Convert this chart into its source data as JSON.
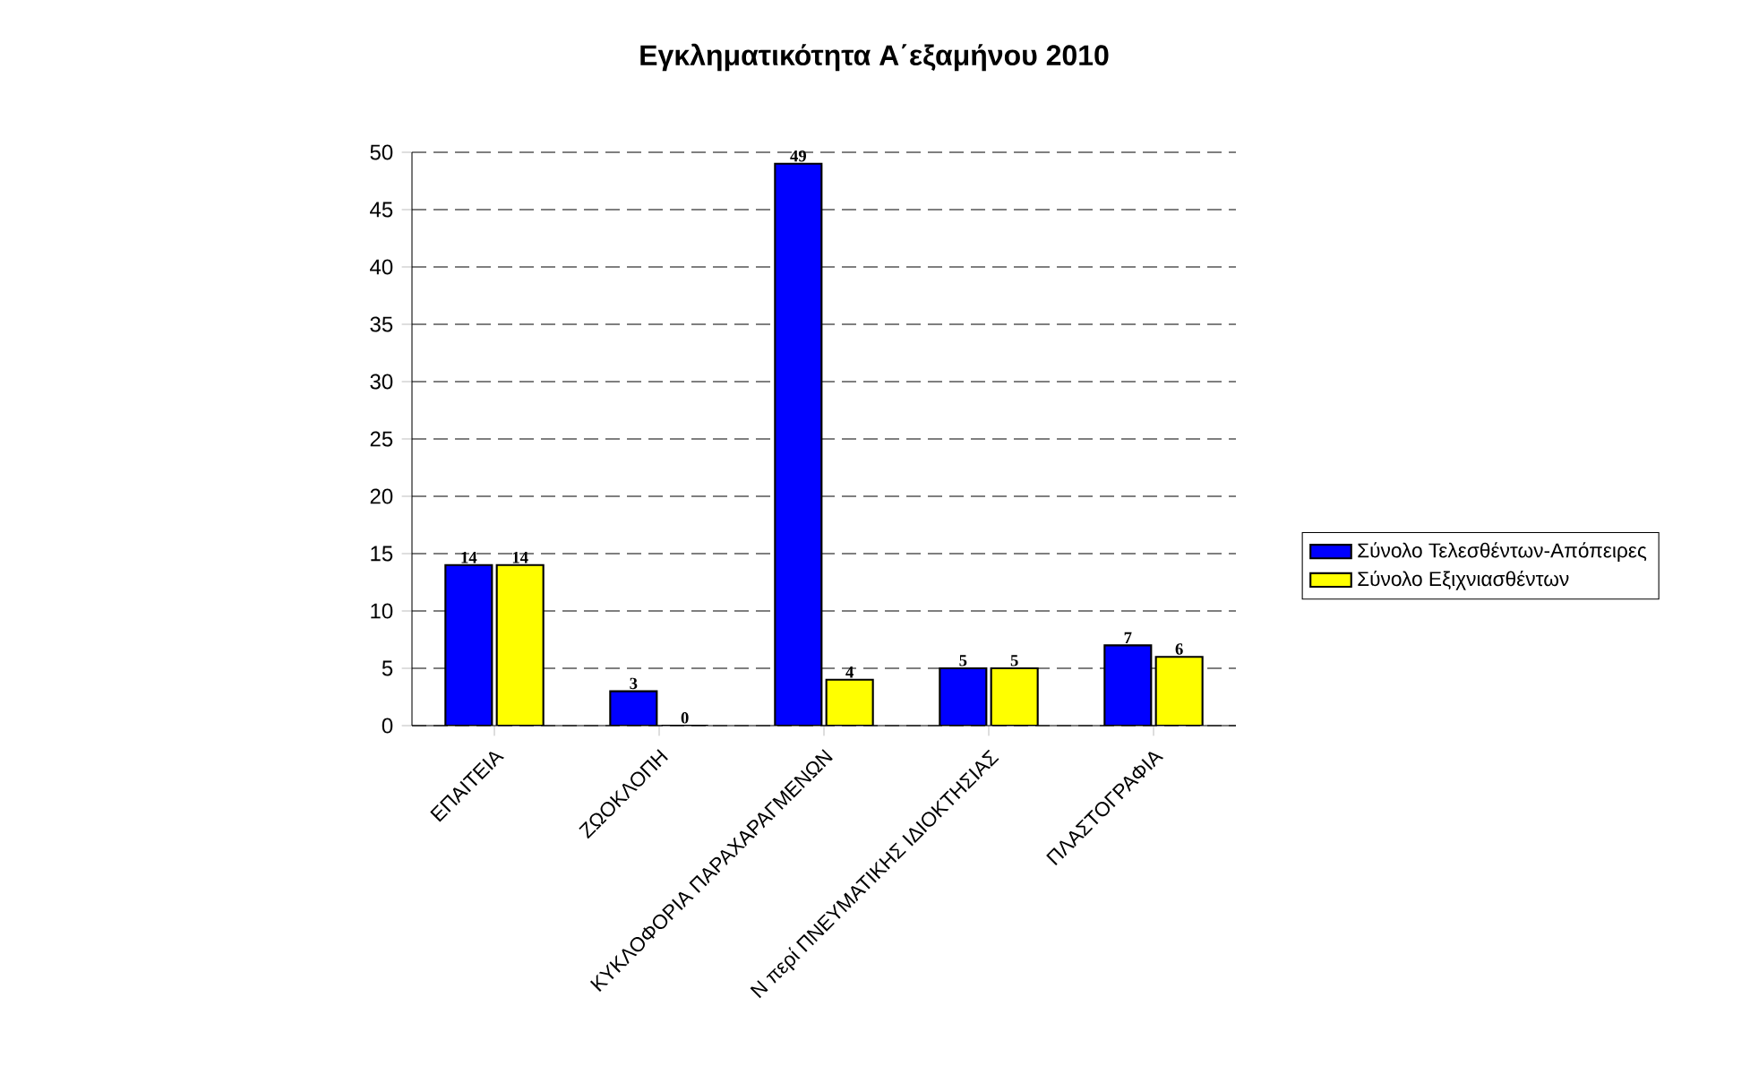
{
  "chart_data": {
    "type": "bar",
    "title": "Εγκληματικότητα Α΄εξαμήνου 2010",
    "categories": [
      "ΕΠΑΙΤΕΙΑ",
      "ΖΩΟΚΛΟΠΗ",
      "ΚΥΚΛΟΦΟΡΙΑ ΠΑΡΑΧΑΡΑΓΜΕΝΩΝ",
      "Ν περί ΠΝΕΥΜΑΤΙΚΗΣ ΙΔΙΟΚΤΗΣΙΑΣ",
      "ΠΛΑΣΤΟΓΡΑΦΙΑ"
    ],
    "series": [
      {
        "name": "Σύνολο Τελεσθέντων-Απόπειρες",
        "color": "#0000ff",
        "values": [
          14,
          3,
          49,
          5,
          7
        ]
      },
      {
        "name": "Σύνολο Εξιχνιασθέντων",
        "color": "#ffff00",
        "values": [
          14,
          0,
          4,
          5,
          6
        ]
      }
    ],
    "ylim": [
      0,
      50
    ],
    "yticks": [
      0,
      5,
      10,
      15,
      20,
      25,
      30,
      35,
      40,
      45,
      50
    ],
    "grid": "y",
    "legend": "right",
    "data_labels": true
  }
}
